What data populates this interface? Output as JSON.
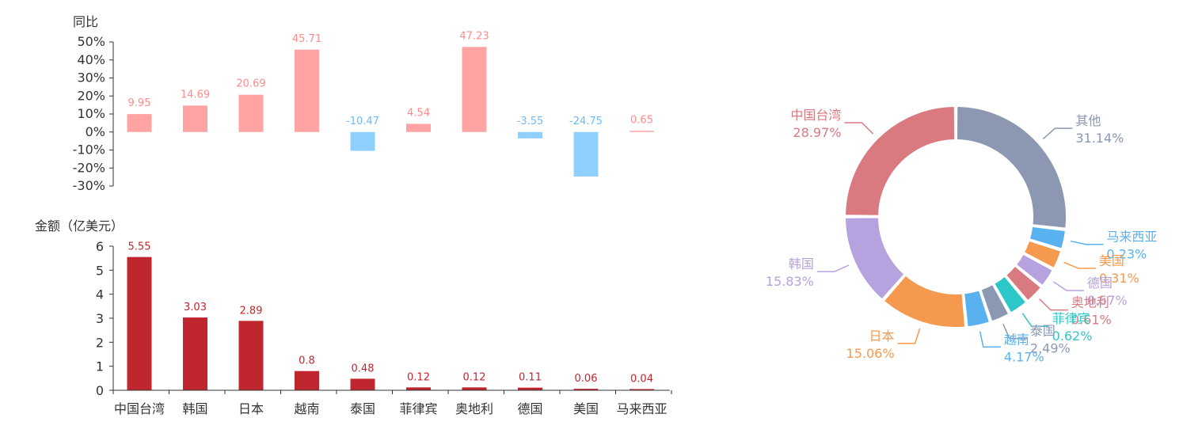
{
  "colors": {
    "axis": "#333333",
    "tick_text": "#333333",
    "yoy_positive": "#ffa3a3",
    "yoy_positive_label": "#ff8a8a",
    "yoy_negative": "#8fd0ff",
    "yoy_negative_label": "#6cbcf5",
    "amount_bar": "#c0262d",
    "amount_label": "#c0262d"
  },
  "chart_data": [
    {
      "type": "bar",
      "ylabel": "同比",
      "ylim": [
        -30,
        50
      ],
      "yticks": [
        "50%",
        "40%",
        "30%",
        "20%",
        "10%",
        "0%",
        "-10%",
        "-20%",
        "-30%"
      ],
      "ytick_values": [
        50,
        40,
        30,
        20,
        10,
        0,
        -10,
        -20,
        -30
      ],
      "categories": [
        "中国台湾",
        "韩国",
        "日本",
        "越南",
        "泰国",
        "菲律宾",
        "奥地利",
        "德国",
        "美国",
        "马来西亚"
      ],
      "values": [
        9.95,
        14.69,
        20.69,
        45.71,
        -10.47,
        4.54,
        47.23,
        -3.55,
        -24.75,
        0.65
      ],
      "labels": [
        "9.95",
        "14.69",
        "20.69",
        "45.71",
        "-10.47",
        "4.54",
        "47.23",
        "-3.55",
        "-24.75",
        "0.65"
      ]
    },
    {
      "type": "bar",
      "ylabel": "金额（亿美元）",
      "ylim": [
        0,
        6
      ],
      "yticks": [
        "6",
        "5",
        "4",
        "3",
        "2",
        "1",
        "0"
      ],
      "ytick_values": [
        6,
        5,
        4,
        3,
        2,
        1,
        0
      ],
      "categories": [
        "中国台湾",
        "韩国",
        "日本",
        "越南",
        "泰国",
        "菲律宾",
        "奥地利",
        "德国",
        "美国",
        "马来西亚"
      ],
      "values": [
        5.55,
        3.03,
        2.89,
        0.8,
        0.48,
        0.12,
        0.12,
        0.11,
        0.06,
        0.04
      ],
      "labels": [
        "5.55",
        "3.03",
        "2.89",
        "0.8",
        "0.48",
        "0.12",
        "0.12",
        "0.11",
        "0.06",
        "0.04"
      ]
    },
    {
      "type": "pie",
      "donut": true,
      "slices": [
        {
          "name": "其他",
          "value": 31.14,
          "label": "31.14%",
          "color": "#8c98b2"
        },
        {
          "name": "马来西亚",
          "value": 0.23,
          "label": "0.23%",
          "color": "#5ab1ef"
        },
        {
          "name": "美国",
          "value": 0.31,
          "label": "0.31%",
          "color": "#f5994e"
        },
        {
          "name": "德国",
          "value": 0.57,
          "label": "0.57%",
          "color": "#b6a2de"
        },
        {
          "name": "奥地利",
          "value": 0.61,
          "label": "0.61%",
          "color": "#d87a80"
        },
        {
          "name": "菲律宾",
          "value": 0.62,
          "label": "0.62%",
          "color": "#2ec7c9"
        },
        {
          "name": "泰国",
          "value": 2.49,
          "label": "2.49%",
          "color": "#8c98b2"
        },
        {
          "name": "越南",
          "value": 4.17,
          "label": "4.17%",
          "color": "#5ab1ef"
        },
        {
          "name": "日本",
          "value": 15.06,
          "label": "15.06%",
          "color": "#f5994e"
        },
        {
          "name": "韩国",
          "value": 15.83,
          "label": "15.83%",
          "color": "#b6a2de"
        },
        {
          "name": "中国台湾",
          "value": 28.97,
          "label": "28.97%",
          "color": "#d87a80"
        }
      ]
    }
  ]
}
